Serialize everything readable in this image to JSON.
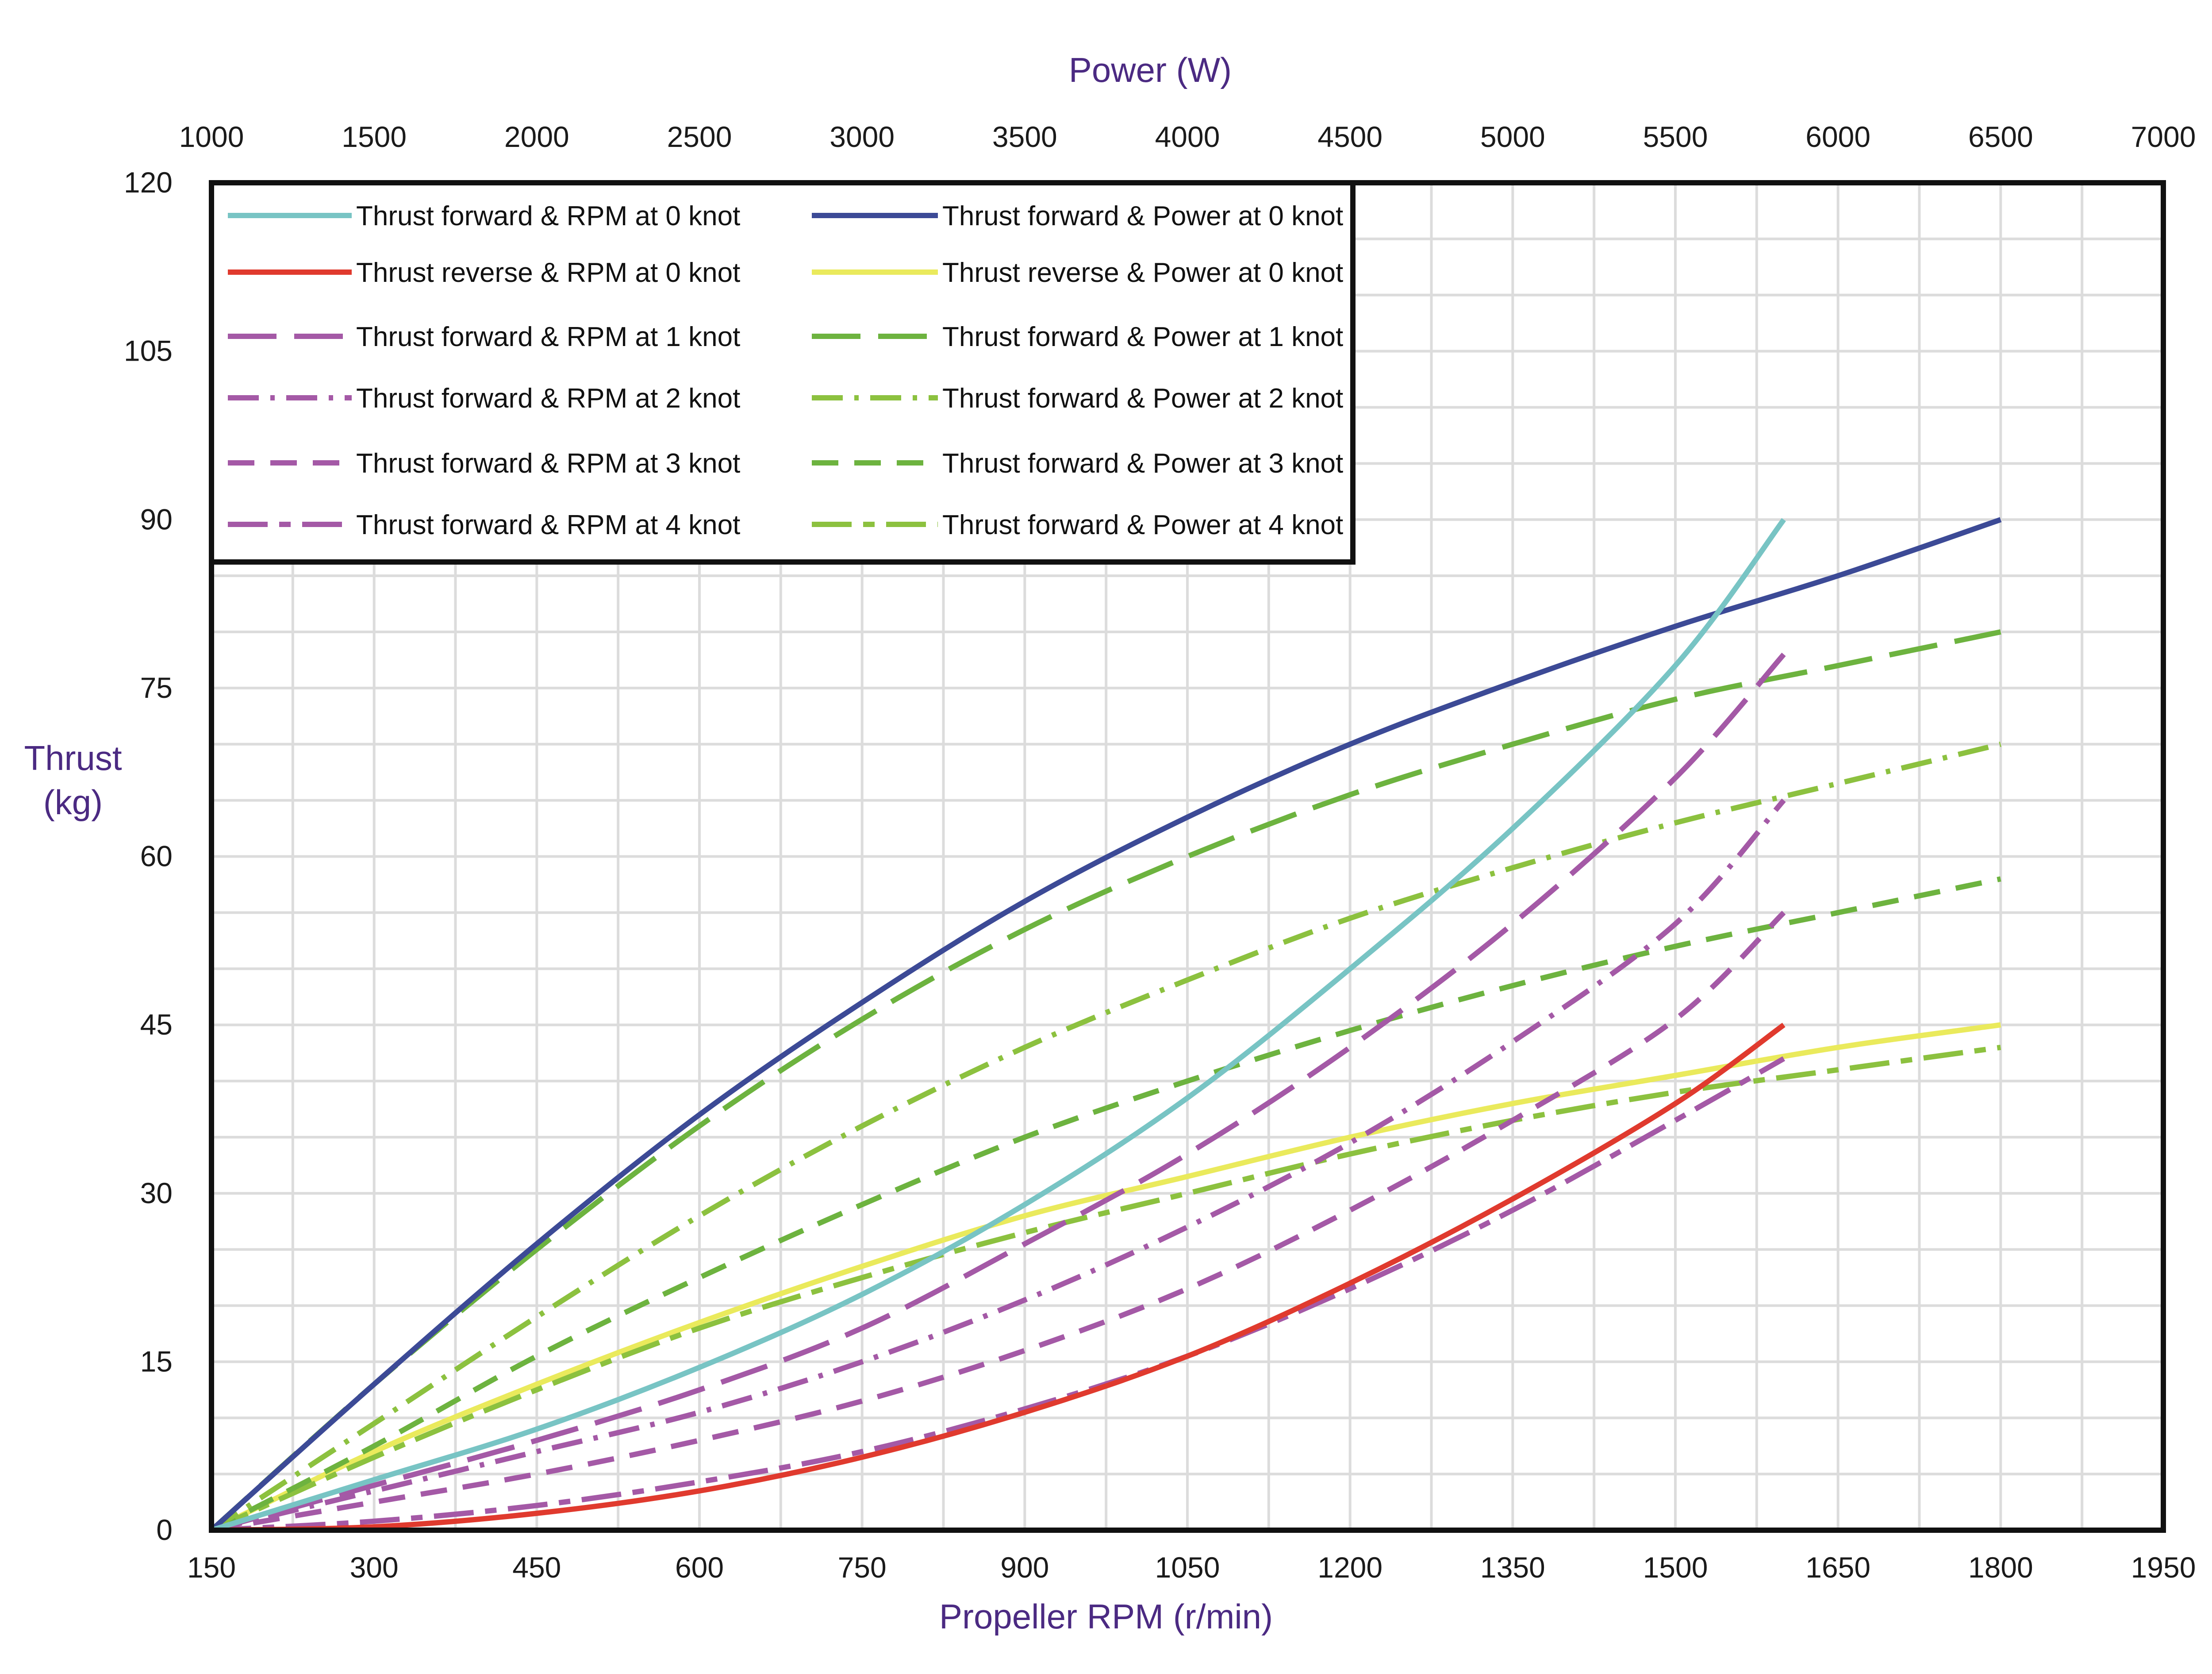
{
  "chart_data": {
    "type": "line",
    "title": "",
    "xlabel": "Propeller RPM (r/min)",
    "x2label": "Power (W)",
    "ylabel_line1": "Thrust",
    "ylabel_line2": "(kg)",
    "xlim": [
      150,
      1950
    ],
    "x2lim": [
      1000,
      7000
    ],
    "ylim": [
      0,
      120
    ],
    "x_ticks": [
      "150",
      "300",
      "450",
      "600",
      "750",
      "900",
      "1050",
      "1200",
      "1350",
      "1500",
      "1650",
      "1800",
      "1950"
    ],
    "x2_ticks": [
      "1000",
      "1500",
      "2000",
      "2500",
      "3000",
      "3500",
      "4000",
      "4500",
      "5000",
      "5500",
      "6000",
      "6500",
      "7000"
    ],
    "y_ticks": [
      "0",
      "15",
      "30",
      "45",
      "60",
      "75",
      "90",
      "105",
      "120"
    ],
    "grid": true,
    "legend_position": "top-left",
    "series": [
      {
        "name": "Thrust forward &  RPM at 0 knot",
        "axis": "rpm",
        "color": "#78c4c4",
        "dash": "solid",
        "x": [
          150,
          300,
          450,
          600,
          750,
          900,
          1050,
          1200,
          1350,
          1500,
          1600
        ],
        "y": [
          0,
          4.5,
          9,
          14.5,
          21,
          29,
          38.5,
          50,
          62.5,
          77,
          90
        ]
      },
      {
        "name": "Thrust reverse  &  RPM at 0 knot",
        "axis": "rpm",
        "color": "#e03a2e",
        "dash": "solid",
        "x": [
          150,
          300,
          450,
          600,
          750,
          900,
          1050,
          1200,
          1350,
          1500,
          1600
        ],
        "y": [
          0,
          0.3,
          1.5,
          3.5,
          6.5,
          10.5,
          15.5,
          22,
          29.5,
          38,
          45
        ]
      },
      {
        "name": "Thrust forward &  RPM at 1 knot",
        "axis": "rpm",
        "color": "#a459a6",
        "dash": "long",
        "x": [
          150,
          300,
          450,
          600,
          750,
          900,
          1050,
          1200,
          1350,
          1500,
          1600
        ],
        "y": [
          0,
          4,
          8,
          12.5,
          18,
          25.5,
          33.5,
          43,
          54,
          67,
          78
        ]
      },
      {
        "name": "Thrust forward &  RPM at 2 knot",
        "axis": "rpm",
        "color": "#a459a6",
        "dash": "dashdot",
        "x": [
          150,
          300,
          450,
          600,
          750,
          900,
          1050,
          1200,
          1350,
          1500,
          1600
        ],
        "y": [
          0,
          3.5,
          7,
          10.5,
          15,
          20.5,
          27,
          34.5,
          43.5,
          54,
          65
        ]
      },
      {
        "name": "Thrust forward &  RPM at 3 knot",
        "axis": "rpm",
        "color": "#a459a6",
        "dash": "dash",
        "x": [
          150,
          300,
          450,
          600,
          750,
          900,
          1050,
          1200,
          1350,
          1500,
          1600
        ],
        "y": [
          0,
          2.5,
          5,
          8,
          11.5,
          16,
          21.5,
          28.5,
          36.5,
          45.5,
          55
        ]
      },
      {
        "name": "Thrust forward &  RPM at 4 knot",
        "axis": "rpm",
        "color": "#a459a6",
        "dash": "dashdotlong",
        "x": [
          150,
          300,
          450,
          600,
          750,
          900,
          1050,
          1200,
          1350,
          1500,
          1600
        ],
        "y": [
          0,
          0.8,
          2.2,
          4.3,
          7,
          10.8,
          15.5,
          21.5,
          28.5,
          36.5,
          42
        ]
      },
      {
        "name": "Thrust forward & Power at 0 knot",
        "axis": "power",
        "color": "#3c4a96",
        "dash": "solid",
        "x": [
          1000,
          1500,
          2000,
          2500,
          3000,
          3500,
          4000,
          4500,
          5000,
          5500,
          6000,
          6500
        ],
        "y": [
          0,
          13,
          25.5,
          37,
          47,
          56,
          63.5,
          70,
          75.5,
          80.5,
          85,
          90
        ]
      },
      {
        "name": "Thrust reverse & Power at 0 knot",
        "axis": "power",
        "color": "#eaea5c",
        "dash": "solid",
        "x": [
          1000,
          1500,
          2000,
          2500,
          3000,
          3500,
          4000,
          4500,
          5000,
          5500,
          6000,
          6500
        ],
        "y": [
          0,
          7,
          13,
          18.5,
          23.5,
          28,
          31.5,
          35,
          38,
          40.5,
          43,
          45
        ]
      },
      {
        "name": "Thrust forward & Power at 1 knot",
        "axis": "power",
        "color": "#6db33f",
        "dash": "long",
        "x": [
          1000,
          1500,
          2000,
          2500,
          3000,
          3500,
          4000,
          4500,
          5000,
          5500,
          6000,
          6500
        ],
        "y": [
          0,
          13,
          25,
          36,
          45.5,
          53.5,
          60,
          65.5,
          70,
          74,
          77,
          80
        ]
      },
      {
        "name": "Thrust forward & Power at 2 knot",
        "axis": "power",
        "color": "#8cc13f",
        "dash": "dashdot",
        "x": [
          1000,
          1500,
          2000,
          2500,
          3000,
          3500,
          4000,
          4500,
          5000,
          5500,
          6000,
          6500
        ],
        "y": [
          0,
          9.5,
          19,
          28,
          36,
          43,
          49,
          54.5,
          59,
          63,
          66.5,
          70
        ]
      },
      {
        "name": "Thrust forward & Power at 3 knot",
        "axis": "power",
        "color": "#6db33f",
        "dash": "dash",
        "x": [
          1000,
          1500,
          2000,
          2500,
          3000,
          3500,
          4000,
          4500,
          5000,
          5500,
          6000,
          6500
        ],
        "y": [
          0,
          7.5,
          15.5,
          22.5,
          29,
          35,
          40,
          44.5,
          48.5,
          52,
          55,
          58
        ]
      },
      {
        "name": "Thrust forward & Power at 4 knot",
        "axis": "power",
        "color": "#8cc13f",
        "dash": "dashdotlong",
        "x": [
          1000,
          1500,
          2000,
          2500,
          3000,
          3500,
          4000,
          4500,
          5000,
          5500,
          6000,
          6500
        ],
        "y": [
          0,
          6.5,
          12.5,
          18,
          22.5,
          26.5,
          30,
          33.5,
          36.5,
          39,
          41,
          43
        ]
      }
    ]
  }
}
